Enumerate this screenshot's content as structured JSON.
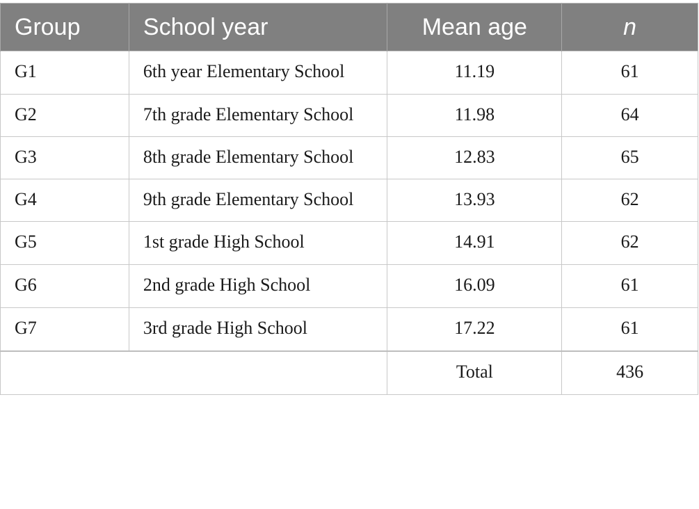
{
  "table": {
    "headers": [
      "Group",
      "School year",
      "Mean age",
      "n"
    ],
    "rows": [
      {
        "group": "G1",
        "school_year": "6th year Elementary School",
        "mean_age": "11.19",
        "n": "61"
      },
      {
        "group": "G2",
        "school_year": "7th grade Elementary School",
        "mean_age": "11.98",
        "n": "64"
      },
      {
        "group": "G3",
        "school_year": "8th grade Elementary School",
        "mean_age": "12.83",
        "n": "65"
      },
      {
        "group": "G4",
        "school_year": "9th grade Elementary School",
        "mean_age": "13.93",
        "n": "62"
      },
      {
        "group": "G5",
        "school_year": "1st grade High School",
        "mean_age": "14.91",
        "n": "62"
      },
      {
        "group": "G6",
        "school_year": "2nd grade High School",
        "mean_age": "16.09",
        "n": "61"
      },
      {
        "group": "G7",
        "school_year": "3rd grade High School",
        "mean_age": "17.22",
        "n": "61"
      }
    ],
    "total": {
      "label": "Total",
      "value": "436"
    }
  },
  "colors": {
    "header_bg": "#808080",
    "header_text": "#ffffff",
    "border": "#c8c8c8"
  }
}
